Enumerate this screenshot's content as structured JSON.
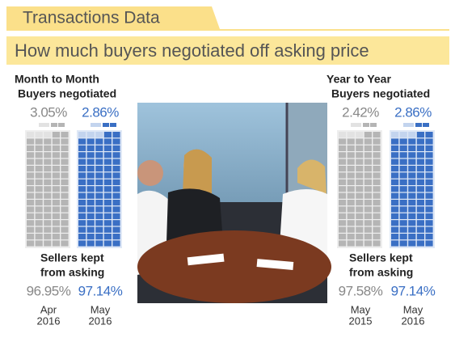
{
  "header": {
    "title": "Transactions Data",
    "subtitle": "How much buyers negotiated off asking price"
  },
  "panels": [
    {
      "title": "Month to Month",
      "buyers_label": "Buyers negotiated",
      "sellers_label": [
        "Sellers kept",
        "from asking"
      ],
      "columns": [
        {
          "negotiated": "3.05%",
          "kept": "96.95%",
          "period": [
            "Apr",
            "2016"
          ]
        },
        {
          "negotiated": "2.86%",
          "kept": "97.14%",
          "period": [
            "May",
            "2016"
          ]
        }
      ]
    },
    {
      "title": "Year to Year",
      "buyers_label": "Buyers negotiated",
      "sellers_label": [
        "Sellers kept",
        "from asking"
      ],
      "columns": [
        {
          "negotiated": "2.42%",
          "kept": "97.58%",
          "period": [
            "May",
            "2015"
          ]
        },
        {
          "negotiated": "2.86%",
          "kept": "97.14%",
          "period": [
            "May",
            "2016"
          ]
        }
      ]
    }
  ]
}
